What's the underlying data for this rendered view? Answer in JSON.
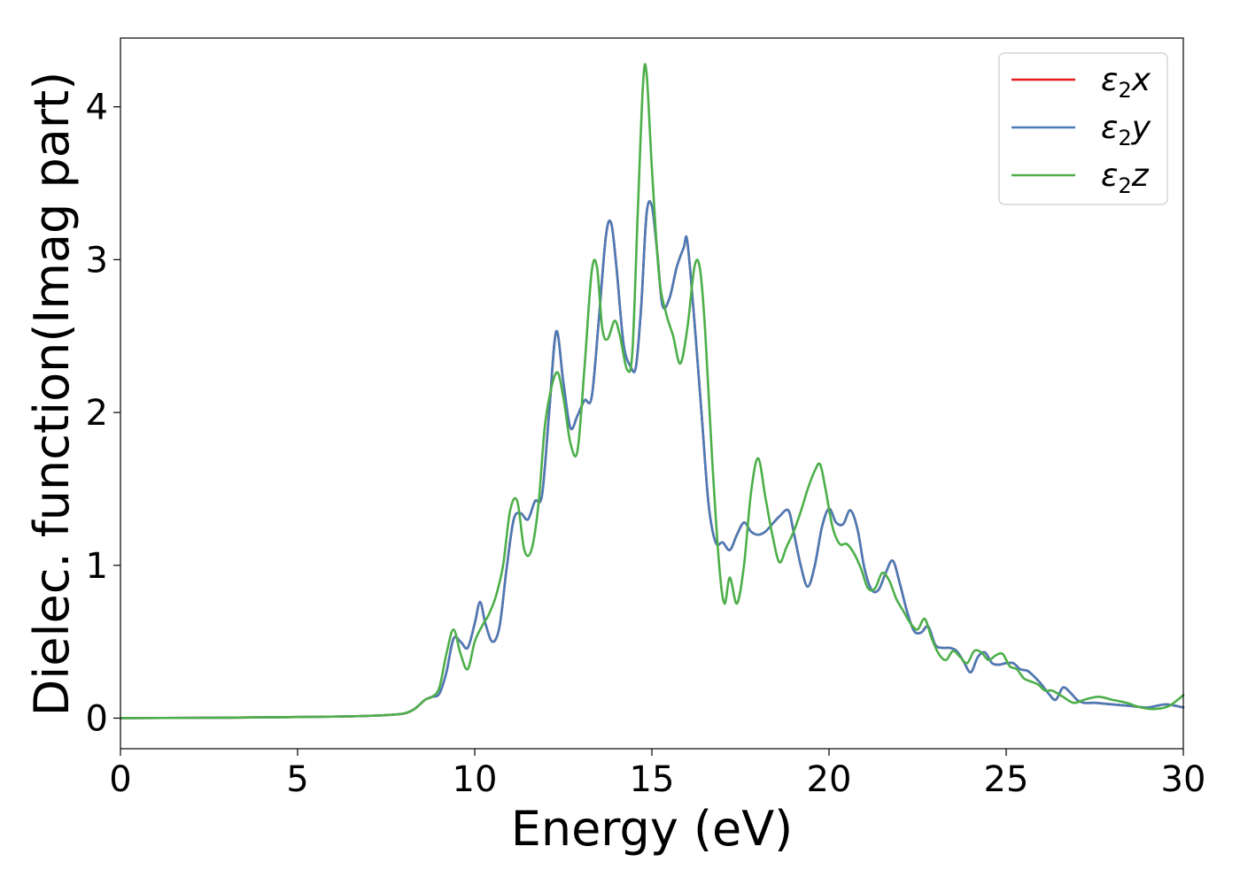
{
  "chart_data": {
    "type": "line",
    "title": "",
    "xlabel": "Energy (eV)",
    "ylabel": "Dielec. function(Imag part)",
    "xlim": [
      0,
      30
    ],
    "ylim": [
      -0.2,
      4.45
    ],
    "xticks": [
      0,
      5,
      10,
      15,
      20,
      25,
      30
    ],
    "yticks": [
      0,
      1,
      2,
      3,
      4
    ],
    "grid": false,
    "legend_position": "top-right",
    "series": [
      {
        "name": "ε₂x",
        "label_base": "ε",
        "label_sub": "2",
        "label_var": "x",
        "color": "#e41a1c",
        "x": [
          0,
          2,
          4,
          6,
          7,
          7.5,
          8,
          8.3,
          8.6,
          8.8,
          9.0,
          9.2,
          9.4,
          9.6,
          9.8,
          10.0,
          10.15,
          10.3,
          10.5,
          10.7,
          10.9,
          11.1,
          11.3,
          11.5,
          11.7,
          11.9,
          12.1,
          12.3,
          12.5,
          12.7,
          12.9,
          13.1,
          13.3,
          13.5,
          13.7,
          13.85,
          14.0,
          14.2,
          14.4,
          14.55,
          14.7,
          14.85,
          15.0,
          15.15,
          15.3,
          15.5,
          15.7,
          15.9,
          16.0,
          16.2,
          16.4,
          16.6,
          16.8,
          17.0,
          17.2,
          17.4,
          17.6,
          17.8,
          18.0,
          18.2,
          18.4,
          18.6,
          18.85,
          19.0,
          19.2,
          19.4,
          19.6,
          19.8,
          20.0,
          20.2,
          20.4,
          20.6,
          20.8,
          21.0,
          21.2,
          21.4,
          21.6,
          21.8,
          22.0,
          22.2,
          22.4,
          22.6,
          22.8,
          23.0,
          23.2,
          23.4,
          23.6,
          23.8,
          24.0,
          24.2,
          24.4,
          24.6,
          24.8,
          25.0,
          25.2,
          25.4,
          25.6,
          25.8,
          26.0,
          26.2,
          26.4,
          26.6,
          26.8,
          27.0,
          27.2,
          27.5,
          28.0,
          28.5,
          29.0,
          29.5,
          30.0
        ],
        "y": [
          0.0,
          0.002,
          0.005,
          0.01,
          0.015,
          0.02,
          0.03,
          0.06,
          0.12,
          0.14,
          0.16,
          0.3,
          0.52,
          0.5,
          0.46,
          0.62,
          0.76,
          0.62,
          0.5,
          0.6,
          0.98,
          1.3,
          1.34,
          1.3,
          1.42,
          1.46,
          2.0,
          2.53,
          2.2,
          1.9,
          1.98,
          2.08,
          2.1,
          2.6,
          3.15,
          3.24,
          2.95,
          2.45,
          2.3,
          2.3,
          2.7,
          3.3,
          3.35,
          3.05,
          2.7,
          2.75,
          2.95,
          3.08,
          3.12,
          2.6,
          2.0,
          1.4,
          1.15,
          1.15,
          1.1,
          1.2,
          1.28,
          1.22,
          1.2,
          1.22,
          1.27,
          1.32,
          1.36,
          1.22,
          1.0,
          0.86,
          1.0,
          1.25,
          1.37,
          1.28,
          1.27,
          1.36,
          1.24,
          0.98,
          0.84,
          0.84,
          0.95,
          1.03,
          0.88,
          0.7,
          0.57,
          0.56,
          0.6,
          0.48,
          0.46,
          0.46,
          0.44,
          0.37,
          0.3,
          0.4,
          0.43,
          0.36,
          0.35,
          0.36,
          0.36,
          0.32,
          0.31,
          0.27,
          0.22,
          0.16,
          0.12,
          0.2,
          0.17,
          0.12,
          0.1,
          0.1,
          0.09,
          0.08,
          0.07,
          0.09,
          0.07
        ]
      },
      {
        "name": "ε₂y",
        "label_base": "ε",
        "label_sub": "2",
        "label_var": "y",
        "color": "#4a7bb7",
        "x": [
          0,
          2,
          4,
          6,
          7,
          7.5,
          8,
          8.3,
          8.6,
          8.8,
          9.0,
          9.2,
          9.4,
          9.6,
          9.8,
          10.0,
          10.15,
          10.3,
          10.5,
          10.7,
          10.9,
          11.1,
          11.3,
          11.5,
          11.7,
          11.9,
          12.1,
          12.3,
          12.5,
          12.7,
          12.9,
          13.1,
          13.3,
          13.5,
          13.7,
          13.85,
          14.0,
          14.2,
          14.4,
          14.55,
          14.7,
          14.85,
          15.0,
          15.15,
          15.3,
          15.5,
          15.7,
          15.9,
          16.0,
          16.2,
          16.4,
          16.6,
          16.8,
          17.0,
          17.2,
          17.4,
          17.6,
          17.8,
          18.0,
          18.2,
          18.4,
          18.6,
          18.85,
          19.0,
          19.2,
          19.4,
          19.6,
          19.8,
          20.0,
          20.2,
          20.4,
          20.6,
          20.8,
          21.0,
          21.2,
          21.4,
          21.6,
          21.8,
          22.0,
          22.2,
          22.4,
          22.6,
          22.8,
          23.0,
          23.2,
          23.4,
          23.6,
          23.8,
          24.0,
          24.2,
          24.4,
          24.6,
          24.8,
          25.0,
          25.2,
          25.4,
          25.6,
          25.8,
          26.0,
          26.2,
          26.4,
          26.6,
          26.8,
          27.0,
          27.2,
          27.5,
          28.0,
          28.5,
          29.0,
          29.5,
          30.0
        ],
        "y": [
          0.0,
          0.002,
          0.005,
          0.01,
          0.015,
          0.02,
          0.03,
          0.06,
          0.12,
          0.14,
          0.16,
          0.3,
          0.52,
          0.5,
          0.46,
          0.62,
          0.76,
          0.62,
          0.5,
          0.6,
          0.98,
          1.3,
          1.34,
          1.3,
          1.42,
          1.46,
          2.0,
          2.53,
          2.2,
          1.9,
          1.98,
          2.08,
          2.1,
          2.6,
          3.15,
          3.24,
          2.95,
          2.45,
          2.3,
          2.3,
          2.7,
          3.3,
          3.35,
          3.05,
          2.7,
          2.75,
          2.95,
          3.08,
          3.12,
          2.6,
          2.0,
          1.4,
          1.15,
          1.15,
          1.1,
          1.2,
          1.28,
          1.22,
          1.2,
          1.22,
          1.27,
          1.32,
          1.36,
          1.22,
          1.0,
          0.86,
          1.0,
          1.25,
          1.37,
          1.28,
          1.27,
          1.36,
          1.24,
          0.98,
          0.84,
          0.84,
          0.95,
          1.03,
          0.88,
          0.7,
          0.57,
          0.56,
          0.6,
          0.48,
          0.46,
          0.46,
          0.44,
          0.37,
          0.3,
          0.4,
          0.43,
          0.36,
          0.35,
          0.36,
          0.36,
          0.32,
          0.31,
          0.27,
          0.22,
          0.16,
          0.12,
          0.2,
          0.17,
          0.12,
          0.1,
          0.1,
          0.09,
          0.08,
          0.07,
          0.09,
          0.07
        ]
      },
      {
        "name": "ε₂z",
        "label_base": "ε",
        "label_sub": "2",
        "label_var": "z",
        "color": "#4daf4a",
        "x": [
          0,
          2,
          4,
          6,
          7,
          7.5,
          8,
          8.3,
          8.6,
          8.8,
          9.0,
          9.2,
          9.4,
          9.6,
          9.8,
          10.0,
          10.2,
          10.4,
          10.6,
          10.8,
          11.0,
          11.2,
          11.4,
          11.6,
          11.8,
          12.0,
          12.3,
          12.5,
          12.7,
          12.9,
          13.1,
          13.3,
          13.45,
          13.6,
          13.75,
          13.95,
          14.1,
          14.3,
          14.45,
          14.6,
          14.75,
          14.85,
          15.0,
          15.2,
          15.4,
          15.6,
          15.8,
          16.0,
          16.2,
          16.35,
          16.5,
          16.7,
          16.9,
          17.05,
          17.2,
          17.4,
          17.6,
          17.8,
          18.0,
          18.2,
          18.4,
          18.6,
          18.8,
          19.0,
          19.2,
          19.4,
          19.6,
          19.75,
          19.9,
          20.1,
          20.3,
          20.5,
          20.7,
          20.9,
          21.1,
          21.3,
          21.5,
          21.7,
          21.9,
          22.1,
          22.3,
          22.5,
          22.7,
          22.9,
          23.1,
          23.3,
          23.5,
          23.7,
          23.9,
          24.1,
          24.3,
          24.5,
          24.7,
          24.9,
          25.1,
          25.3,
          25.5,
          25.7,
          25.9,
          26.1,
          26.3,
          26.6,
          26.9,
          27.2,
          27.6,
          28.0,
          28.4,
          28.8,
          29.2,
          29.6,
          30.0
        ],
        "y": [
          0.0,
          0.002,
          0.005,
          0.01,
          0.015,
          0.02,
          0.03,
          0.06,
          0.12,
          0.14,
          0.2,
          0.42,
          0.58,
          0.42,
          0.32,
          0.5,
          0.6,
          0.68,
          0.8,
          1.0,
          1.36,
          1.42,
          1.1,
          1.1,
          1.4,
          1.95,
          2.26,
          2.1,
          1.8,
          1.75,
          2.3,
          2.92,
          2.95,
          2.55,
          2.48,
          2.6,
          2.5,
          2.28,
          2.4,
          3.3,
          4.15,
          4.22,
          3.6,
          2.9,
          2.65,
          2.5,
          2.32,
          2.55,
          2.95,
          2.95,
          2.55,
          1.7,
          1.0,
          0.75,
          0.92,
          0.75,
          1.0,
          1.48,
          1.7,
          1.45,
          1.2,
          1.02,
          1.12,
          1.22,
          1.35,
          1.5,
          1.62,
          1.66,
          1.5,
          1.25,
          1.14,
          1.14,
          1.08,
          0.98,
          0.85,
          0.85,
          0.95,
          0.9,
          0.78,
          0.7,
          0.62,
          0.58,
          0.65,
          0.52,
          0.42,
          0.38,
          0.44,
          0.4,
          0.36,
          0.44,
          0.43,
          0.38,
          0.41,
          0.42,
          0.34,
          0.32,
          0.26,
          0.24,
          0.22,
          0.18,
          0.18,
          0.14,
          0.1,
          0.12,
          0.14,
          0.12,
          0.1,
          0.07,
          0.06,
          0.08,
          0.15
        ]
      }
    ]
  }
}
